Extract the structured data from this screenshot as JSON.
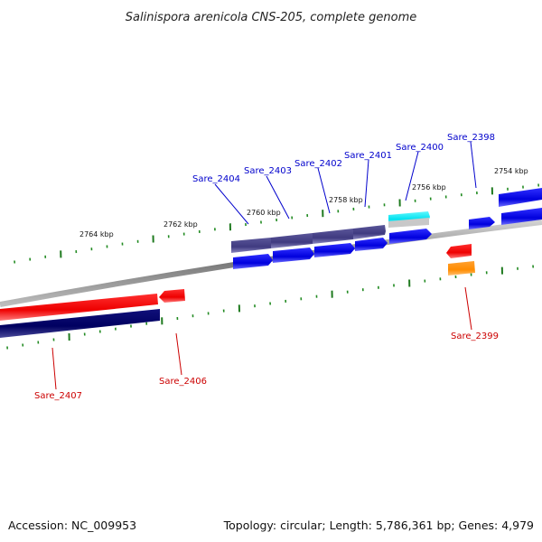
{
  "title": "Salinispora arenicola CNS-205, complete genome",
  "footer": {
    "accession": "Accession: NC_009953",
    "summary": "Topology: circular; Length: 5,786,361 bp; Genes: 4,979"
  },
  "colors": {
    "backbone": "#8a8a8a",
    "minor_tick": "#228b22",
    "major_tick": "#1f7a1f",
    "label_blue": "#0000cc",
    "label_red": "#cc0000",
    "cds_forward": "#0000ee",
    "cds_forward_dark": "#4a4488",
    "cds_reverse": "#ee0000",
    "cds_reverse_dark": "#000066",
    "rrna": "#00e5ee",
    "trna": "#ff8c00"
  },
  "tick_labels": [
    {
      "id": "2764",
      "text": "2764 kbp"
    },
    {
      "id": "2762",
      "text": "2762 kbp"
    },
    {
      "id": "2760",
      "text": "2760 kbp"
    },
    {
      "id": "2758",
      "text": "2758 kbp"
    },
    {
      "id": "2756",
      "text": "2756 kbp"
    },
    {
      "id": "2754",
      "text": "2754 kbp"
    }
  ],
  "genes": [
    {
      "id": "sare-2404",
      "label": "Sare_2404",
      "strand": "forward"
    },
    {
      "id": "sare-2403",
      "label": "Sare_2403",
      "strand": "forward"
    },
    {
      "id": "sare-2402",
      "label": "Sare_2402",
      "strand": "forward"
    },
    {
      "id": "sare-2401",
      "label": "Sare_2401",
      "strand": "forward"
    },
    {
      "id": "sare-2400",
      "label": "Sare_2400",
      "strand": "forward"
    },
    {
      "id": "sare-2398",
      "label": "Sare_2398",
      "strand": "forward"
    },
    {
      "id": "sare-2399",
      "label": "Sare_2399",
      "strand": "reverse"
    },
    {
      "id": "sare-2406",
      "label": "Sare_2406",
      "strand": "reverse"
    },
    {
      "id": "sare-2407",
      "label": "Sare_2407",
      "strand": "reverse"
    }
  ]
}
